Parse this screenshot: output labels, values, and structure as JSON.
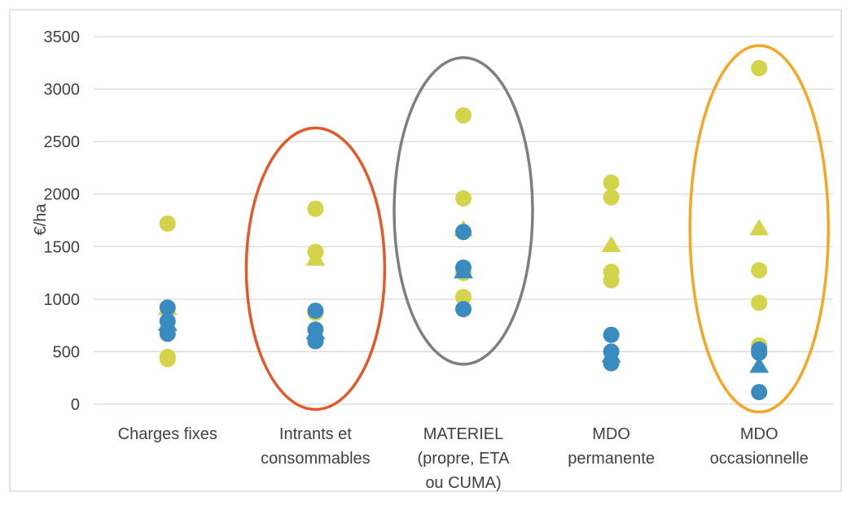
{
  "chart_data": {
    "type": "scatter",
    "title": "",
    "xlabel": "",
    "ylabel": "€/ha",
    "ylim": [
      0,
      3500
    ],
    "yticks": [
      0,
      500,
      1000,
      1500,
      2000,
      2500,
      3000,
      3500
    ],
    "grid": true,
    "legend": "none",
    "categories": [
      {
        "lines": [
          "Charges fixes"
        ]
      },
      {
        "lines": [
          "Intrants et",
          "consommables"
        ]
      },
      {
        "lines": [
          "MATERIEL",
          "(propre, ETA",
          "ou CUMA)"
        ]
      },
      {
        "lines": [
          "MDO",
          "permanente"
        ]
      },
      {
        "lines": [
          "MDO",
          "occasionnelle"
        ]
      }
    ],
    "series": [
      {
        "color": "#D4D44A",
        "marker": "circle",
        "points": [
          {
            "category": 0,
            "value": 1720
          },
          {
            "category": 0,
            "value": 450
          },
          {
            "category": 0,
            "value": 430
          },
          {
            "category": 1,
            "value": 1860
          },
          {
            "category": 1,
            "value": 1450
          },
          {
            "category": 1,
            "value": 870
          },
          {
            "category": 2,
            "value": 2750
          },
          {
            "category": 2,
            "value": 1960
          },
          {
            "category": 2,
            "value": 1250
          },
          {
            "category": 2,
            "value": 1020
          },
          {
            "category": 3,
            "value": 2110
          },
          {
            "category": 3,
            "value": 1970
          },
          {
            "category": 3,
            "value": 1260
          },
          {
            "category": 3,
            "value": 1180
          },
          {
            "category": 4,
            "value": 3200
          },
          {
            "category": 4,
            "value": 1275
          },
          {
            "category": 4,
            "value": 965
          },
          {
            "category": 4,
            "value": 560
          }
        ]
      },
      {
        "color": "#D4D44A",
        "marker": "triangle",
        "points": [
          {
            "category": 0,
            "value": 910
          },
          {
            "category": 1,
            "value": 1380
          },
          {
            "category": 2,
            "value": 1660
          },
          {
            "category": 3,
            "value": 1510
          },
          {
            "category": 4,
            "value": 1670
          }
        ]
      },
      {
        "color": "#3A8CC0",
        "marker": "circle",
        "points": [
          {
            "category": 0,
            "value": 920
          },
          {
            "category": 0,
            "value": 790
          },
          {
            "category": 0,
            "value": 670
          },
          {
            "category": 1,
            "value": 890
          },
          {
            "category": 1,
            "value": 710
          },
          {
            "category": 1,
            "value": 600
          },
          {
            "category": 2,
            "value": 1640
          },
          {
            "category": 2,
            "value": 1300
          },
          {
            "category": 2,
            "value": 905
          },
          {
            "category": 3,
            "value": 660
          },
          {
            "category": 3,
            "value": 500
          },
          {
            "category": 3,
            "value": 390
          },
          {
            "category": 4,
            "value": 520
          },
          {
            "category": 4,
            "value": 490
          },
          {
            "category": 4,
            "value": 115
          }
        ]
      },
      {
        "color": "#3A8CC0",
        "marker": "triangle",
        "points": [
          {
            "category": 0,
            "value": 760
          },
          {
            "category": 1,
            "value": 680
          },
          {
            "category": 2,
            "value": 1260
          },
          {
            "category": 3,
            "value": 460
          },
          {
            "category": 4,
            "value": 360
          }
        ]
      }
    ],
    "annotations": [
      {
        "shape": "ellipse",
        "around_category": 1,
        "color": "#E35A2A",
        "from_value": -50,
        "to_value": 2630
      },
      {
        "shape": "ellipse",
        "around_category": 2,
        "color": "#7F7F7F",
        "from_value": 380,
        "to_value": 3300
      },
      {
        "shape": "ellipse",
        "around_category": 4,
        "color": "#F5A623",
        "from_value": -75,
        "to_value": 3415
      }
    ]
  }
}
